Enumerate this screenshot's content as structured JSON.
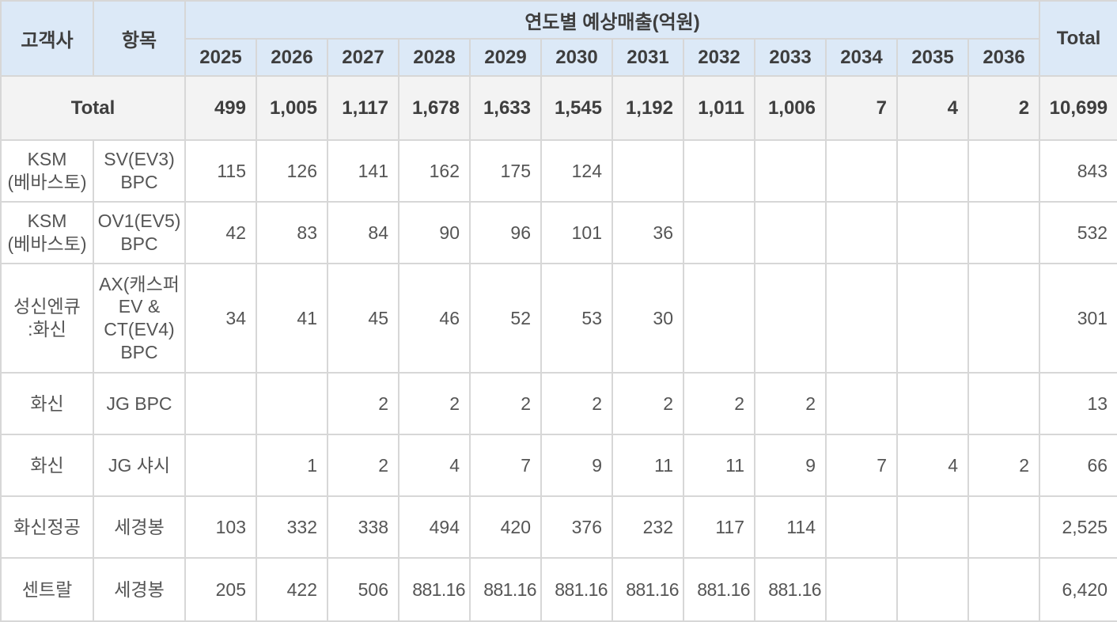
{
  "table": {
    "title": "연도별 예상매출(억원)",
    "col_customer": "고객사",
    "col_item": "항목",
    "col_total": "Total",
    "years": [
      "2025",
      "2026",
      "2027",
      "2028",
      "2029",
      "2030",
      "2031",
      "2032",
      "2033",
      "2034",
      "2035",
      "2036"
    ],
    "total_row": {
      "label": "Total",
      "values": [
        "499",
        "1,005",
        "1,117",
        "1,678",
        "1,633",
        "1,545",
        "1,192",
        "1,011",
        "1,006",
        "7",
        "4",
        "2"
      ],
      "total": "10,699"
    },
    "rows": [
      {
        "customer": "KSM\n(베바스토)",
        "item": "SV(EV3)\nBPC",
        "values": [
          "115",
          "126",
          "141",
          "162",
          "175",
          "124",
          "",
          "",
          "",
          "",
          "",
          ""
        ],
        "total": "843"
      },
      {
        "customer": "KSM\n(베바스토)",
        "item": "OV1(EV5)\nBPC",
        "values": [
          "42",
          "83",
          "84",
          "90",
          "96",
          "101",
          "36",
          "",
          "",
          "",
          "",
          ""
        ],
        "total": "532"
      },
      {
        "customer": "성신엔큐\n:화신",
        "item": "AX(캐스퍼\nEV &\nCT(EV4)\nBPC",
        "values": [
          "34",
          "41",
          "45",
          "46",
          "52",
          "53",
          "30",
          "",
          "",
          "",
          "",
          ""
        ],
        "total": "301"
      },
      {
        "customer": "화신",
        "item": "JG BPC",
        "values": [
          "",
          "",
          "2",
          "2",
          "2",
          "2",
          "2",
          "2",
          "2",
          "",
          "",
          ""
        ],
        "total": "13"
      },
      {
        "customer": "화신",
        "item": "JG 샤시",
        "values": [
          "",
          "1",
          "2",
          "4",
          "7",
          "9",
          "11",
          "11",
          "9",
          "7",
          "4",
          "2"
        ],
        "total": "66"
      },
      {
        "customer": "화신정공",
        "item": "세경봉",
        "values": [
          "103",
          "332",
          "338",
          "494",
          "420",
          "376",
          "232",
          "117",
          "114",
          "",
          "",
          ""
        ],
        "total": "2,525"
      },
      {
        "customer": "센트랄",
        "item": "세경봉",
        "values": [
          "205",
          "422",
          "506",
          "881.16",
          "881.16",
          "881.16",
          "881.16",
          "881.16",
          "881.16",
          "",
          "",
          ""
        ],
        "total": "6,420"
      }
    ],
    "colors": {
      "header_bg": "#DCE9F7",
      "total_row_bg": "#F3F3F3",
      "border": "#D7D7D7",
      "header_text": "#3E3E3E",
      "body_text": "#555555"
    }
  },
  "chart_data": {
    "type": "table",
    "title": "연도별 예상매출(억원)",
    "columns": [
      "고객사",
      "항목",
      "2025",
      "2026",
      "2027",
      "2028",
      "2029",
      "2030",
      "2031",
      "2032",
      "2033",
      "2034",
      "2035",
      "2036",
      "Total"
    ],
    "rows": [
      [
        "Total",
        "",
        "499",
        "1,005",
        "1,117",
        "1,678",
        "1,633",
        "1,545",
        "1,192",
        "1,011",
        "1,006",
        "7",
        "4",
        "2",
        "10,699"
      ],
      [
        "KSM (베바스토)",
        "SV(EV3) BPC",
        "115",
        "126",
        "141",
        "162",
        "175",
        "124",
        "",
        "",
        "",
        "",
        "",
        "",
        "843"
      ],
      [
        "KSM (베바스토)",
        "OV1(EV5) BPC",
        "42",
        "83",
        "84",
        "90",
        "96",
        "101",
        "36",
        "",
        "",
        "",
        "",
        "",
        "532"
      ],
      [
        "성신엔큐 :화신",
        "AX(캐스퍼 EV & CT(EV4) BPC",
        "34",
        "41",
        "45",
        "46",
        "52",
        "53",
        "30",
        "",
        "",
        "",
        "",
        "",
        "301"
      ],
      [
        "화신",
        "JG BPC",
        "",
        "",
        "2",
        "2",
        "2",
        "2",
        "2",
        "2",
        "2",
        "",
        "",
        "",
        "13"
      ],
      [
        "화신",
        "JG 샤시",
        "",
        "1",
        "2",
        "4",
        "7",
        "9",
        "11",
        "11",
        "9",
        "7",
        "4",
        "2",
        "66"
      ],
      [
        "화신정공",
        "세경봉",
        "103",
        "332",
        "338",
        "494",
        "420",
        "376",
        "232",
        "117",
        "114",
        "",
        "",
        "",
        "2,525"
      ],
      [
        "센트랄",
        "세경봉",
        "205",
        "422",
        "506",
        "881.16",
        "881.16",
        "881.16",
        "881.16",
        "881.16",
        "881.16",
        "",
        "",
        "",
        "6,420"
      ]
    ]
  }
}
